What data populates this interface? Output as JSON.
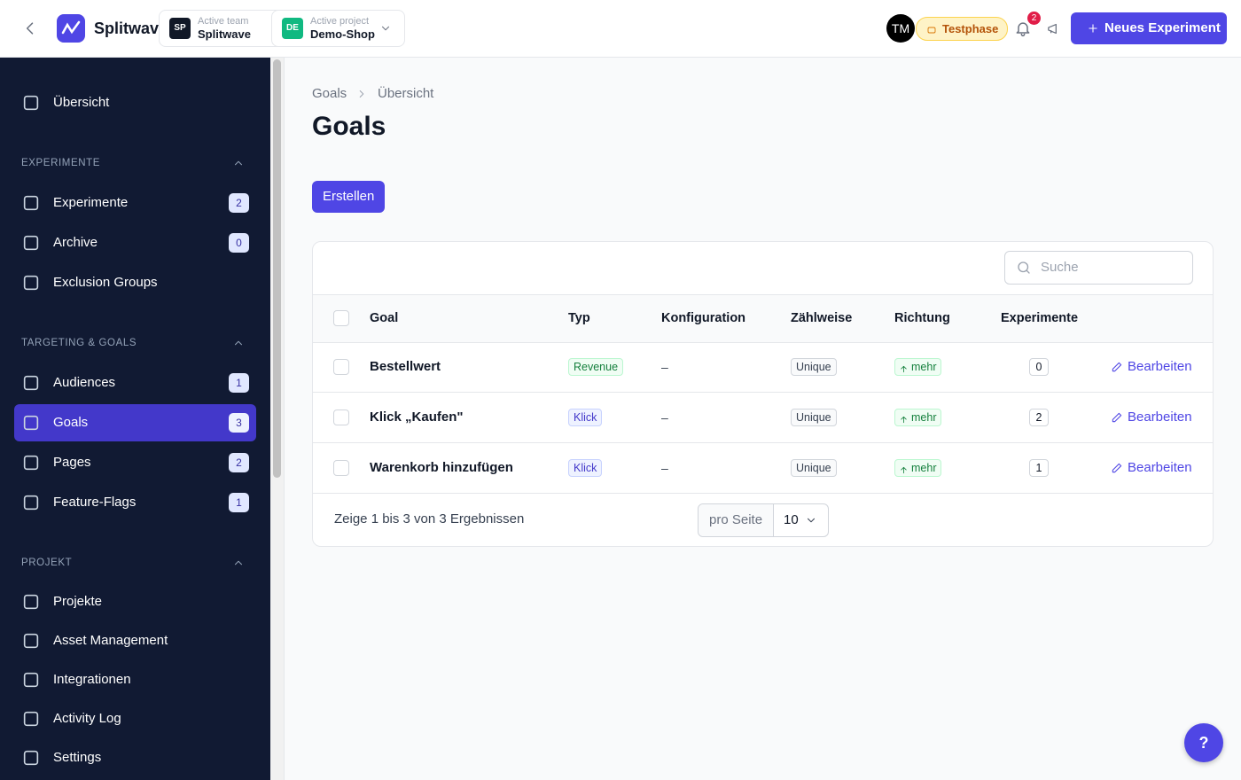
{
  "header": {
    "brand": "Splitwave",
    "team": {
      "initials": "SP",
      "caption": "Active team",
      "name": "Splitwave"
    },
    "project": {
      "initials": "DE",
      "caption": "Active project",
      "name": "Demo-Shop"
    },
    "user_initials": "TM",
    "trial": "Testphase",
    "notifications": 2,
    "new_button": "Neues Experiment"
  },
  "sidebar": {
    "top": {
      "label": "Übersicht"
    },
    "sections": [
      {
        "title": "EXPERIMENTE",
        "items": [
          {
            "label": "Experimente",
            "count": 2
          },
          {
            "label": "Archive",
            "count": 0
          },
          {
            "label": "Exclusion Groups"
          }
        ]
      },
      {
        "title": "TARGETING & GOALS",
        "items": [
          {
            "label": "Audiences",
            "count": 1
          },
          {
            "label": "Goals",
            "count": 3,
            "active": true
          },
          {
            "label": "Pages",
            "count": 2
          },
          {
            "label": "Feature-Flags",
            "count": 1
          }
        ]
      },
      {
        "title": "PROJEKT",
        "items": [
          {
            "label": "Projekte"
          },
          {
            "label": "Asset Management"
          },
          {
            "label": "Integrationen"
          },
          {
            "label": "Activity Log"
          },
          {
            "label": "Settings"
          }
        ]
      }
    ]
  },
  "breadcrumb": [
    "Goals",
    "Übersicht"
  ],
  "title": "Goals",
  "create_button": "Erstellen",
  "search_placeholder": "Suche",
  "table": {
    "columns": [
      "Goal",
      "Typ",
      "Konfiguration",
      "Zählweise",
      "Richtung",
      "Experimente"
    ],
    "rows": [
      {
        "goal": "Bestellwert",
        "type": "Revenue",
        "config": "–",
        "counting": "Unique",
        "direction": "mehr",
        "experiments": 0,
        "action": "Bearbeiten"
      },
      {
        "goal": "Klick „Kaufen\"",
        "type": "Klick",
        "config": "–",
        "counting": "Unique",
        "direction": "mehr",
        "experiments": 2,
        "action": "Bearbeiten"
      },
      {
        "goal": "Warenkorb hinzufügen",
        "type": "Klick",
        "config": "–",
        "counting": "Unique",
        "direction": "mehr",
        "experiments": 1,
        "action": "Bearbeiten"
      }
    ]
  },
  "footer": {
    "summary": "Zeige 1 bis 3 von 3 Ergebnissen",
    "per_page_label": "pro Seite",
    "per_page": 10
  },
  "help": "?"
}
